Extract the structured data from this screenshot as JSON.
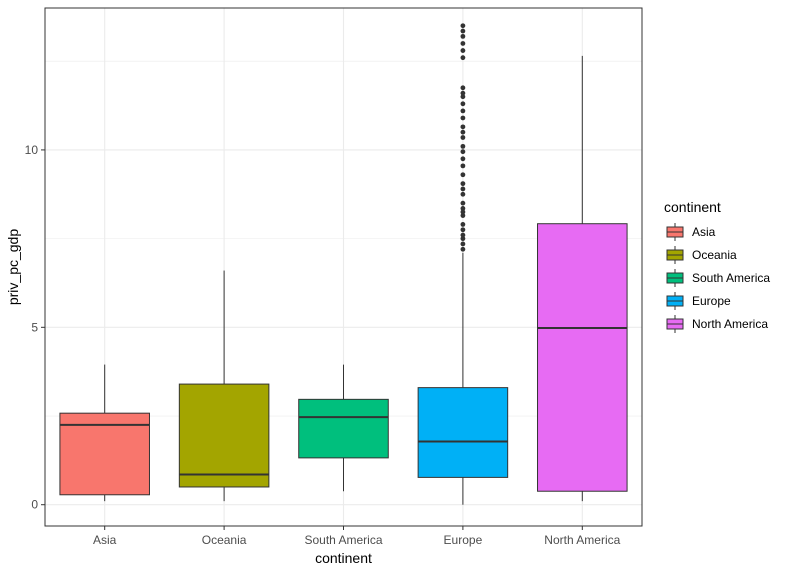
{
  "chart_data": {
    "type": "boxplot",
    "xlabel": "continent",
    "ylabel": "priv_pc_gdp",
    "ylim": [
      -0.6,
      14
    ],
    "yticks": [
      0,
      5,
      10
    ],
    "y_minor_ticks": [
      2.5,
      7.5,
      12.5
    ],
    "grid": true,
    "legend": {
      "title": "continent",
      "position": "right"
    },
    "categories": [
      "Asia",
      "Oceania",
      "South America",
      "Europe",
      "North America"
    ],
    "series": [
      {
        "name": "Asia",
        "color": "#F8766D",
        "whisker_low": 0.1,
        "q1": 0.28,
        "median": 2.25,
        "q3": 2.58,
        "whisker_high": 3.95,
        "outliers": []
      },
      {
        "name": "Oceania",
        "color": "#A3A500",
        "whisker_low": 0.1,
        "q1": 0.5,
        "median": 0.85,
        "q3": 3.4,
        "whisker_high": 6.6,
        "outliers": []
      },
      {
        "name": "South America",
        "color": "#00BF7D",
        "whisker_low": 0.38,
        "q1": 1.32,
        "median": 2.47,
        "q3": 2.97,
        "whisker_high": 3.95,
        "outliers": []
      },
      {
        "name": "Europe",
        "color": "#00B0F6",
        "whisker_low": 0.0,
        "q1": 0.77,
        "median": 1.78,
        "q3": 3.3,
        "whisker_high": 7.1,
        "outliers": [
          7.2,
          7.35,
          7.5,
          7.6,
          7.75,
          7.9,
          8.15,
          8.25,
          8.35,
          8.5,
          8.75,
          8.9,
          9.05,
          9.3,
          9.55,
          9.75,
          9.95,
          10.1,
          10.35,
          10.5,
          10.65,
          10.9,
          11.1,
          11.3,
          11.5,
          11.6,
          11.75,
          12.6,
          12.8,
          13.0,
          13.2,
          13.35,
          13.5
        ]
      },
      {
        "name": "North America",
        "color": "#E76BF3",
        "whisker_low": 0.1,
        "q1": 0.38,
        "median": 4.98,
        "q3": 7.92,
        "whisker_high": 12.65,
        "outliers": []
      }
    ]
  }
}
